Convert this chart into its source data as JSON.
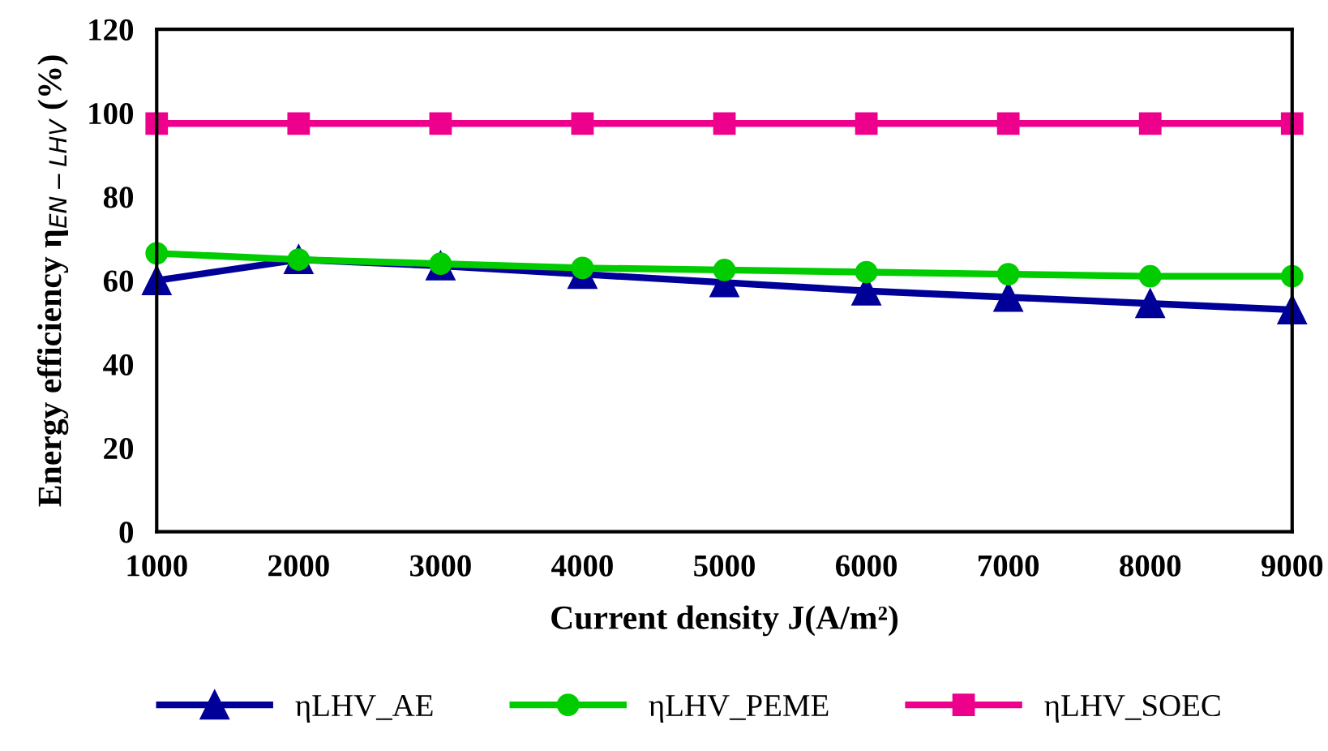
{
  "chart_data": {
    "type": "line",
    "xlabel": "Current density J(A/m²)",
    "ylabel": "Energy efficiency η$_{EN−LHV}$ (%)",
    "x": [
      1000,
      2000,
      3000,
      4000,
      5000,
      6000,
      7000,
      8000,
      9000
    ],
    "xlim": [
      1000,
      9000
    ],
    "xticks": [
      1000,
      2000,
      3000,
      4000,
      5000,
      6000,
      7000,
      8000,
      9000
    ],
    "ylim": [
      0,
      120
    ],
    "yticks": [
      0,
      20,
      40,
      60,
      80,
      100,
      120
    ],
    "grid": false,
    "legend": "bottom",
    "series": [
      {
        "name": "ηLHV_AE",
        "color": "#000099",
        "marker": "triangle",
        "values": [
          60,
          65,
          63.5,
          61.5,
          59.5,
          57.5,
          56,
          54.5,
          53
        ]
      },
      {
        "name": "ηLHV_PEME",
        "color": "#00cc00",
        "marker": "circle",
        "values": [
          66.5,
          65,
          64,
          63,
          62.5,
          62,
          61.5,
          61,
          61
        ]
      },
      {
        "name": "ηLHV_SOEC",
        "color": "#ec008c",
        "marker": "square",
        "values": [
          97.5,
          97.5,
          97.5,
          97.5,
          97.5,
          97.5,
          97.5,
          97.5,
          97.5
        ]
      }
    ]
  }
}
